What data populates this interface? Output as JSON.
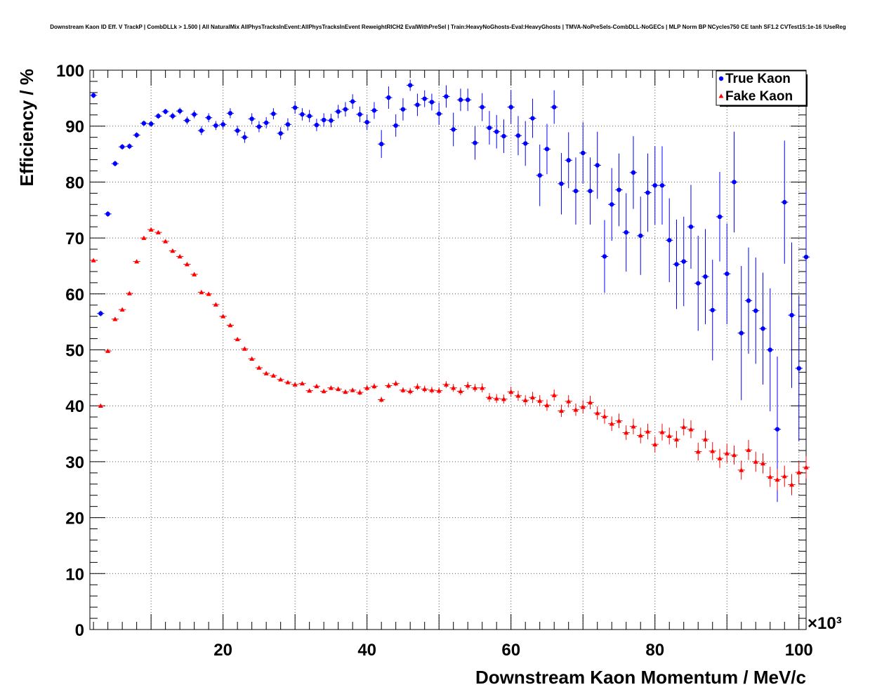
{
  "title": "Downstream Kaon ID Eff. V TrackP | CombDLLk > 1.500 | All NaturalMix AllPhysTracksInEvent:AllPhysTracksInEvent ReweightRICH2 EvalWithPreSel | Train:HeavyNoGhosts-Eval:HeavyGhosts | TMVA-NoPreSels-CombDLL-NoGECs | MLP Norm BP NCycles750 CE tanh SF1.2 CVTest15:1e-16 !UseReg",
  "chart_data": {
    "type": "scatter",
    "title": "Downstream Kaon ID Eff. V TrackP | CombDLLk > 1.500 | All NaturalMix AllPhysTracksInEvent:AllPhysTracksInEvent ReweightRICH2 EvalWithPreSel | Train:HeavyNoGhosts-Eval:HeavyGhosts | TMVA-NoPreSels-CombDLL-NoGECs | MLP Norm BP NCycles750 CE tanh SF1.2 CVTest15:1e-16 !UseReg",
    "xlabel": "Downstream Kaon Momentum / MeV/c",
    "ylabel": "Efficiency / %",
    "x_multiplier": "×10³",
    "xlim": [
      1.5,
      101
    ],
    "ylim": [
      0,
      100
    ],
    "xticks": [
      "20",
      "40",
      "60",
      "80",
      "100"
    ],
    "yticks": [
      "0",
      "10",
      "20",
      "30",
      "40",
      "50",
      "60",
      "70",
      "80",
      "90",
      "100"
    ],
    "grid": true,
    "legend_position": "top-right",
    "series": [
      {
        "name": "True Kaon",
        "marker": "circle",
        "color": "#0000ff",
        "points": [
          [
            2.0,
            95.5,
            0.5
          ],
          [
            3.0,
            56.5,
            0.5
          ],
          [
            4.0,
            74.3,
            0.5
          ],
          [
            5.0,
            83.3,
            0.5
          ],
          [
            6.0,
            86.3,
            0.5
          ],
          [
            7.0,
            86.4,
            0.5
          ],
          [
            8.0,
            88.4,
            0.5
          ],
          [
            9.0,
            90.5,
            0.5
          ],
          [
            10.0,
            90.4,
            0.5
          ],
          [
            11.0,
            91.8,
            0.5
          ],
          [
            12.0,
            92.6,
            0.5
          ],
          [
            13.0,
            91.8,
            0.6
          ],
          [
            14.0,
            92.7,
            0.6
          ],
          [
            15.0,
            91.0,
            0.7
          ],
          [
            16.0,
            92.1,
            0.7
          ],
          [
            17.0,
            89.2,
            0.8
          ],
          [
            18.0,
            91.5,
            0.8
          ],
          [
            19.0,
            90.1,
            0.8
          ],
          [
            20.0,
            90.3,
            0.8
          ],
          [
            21.0,
            92.3,
            0.9
          ],
          [
            22.0,
            89.2,
            0.9
          ],
          [
            23.0,
            88.0,
            1.0
          ],
          [
            24.0,
            91.3,
            1.0
          ],
          [
            25.0,
            89.9,
            1.0
          ],
          [
            26.0,
            90.6,
            1.0
          ],
          [
            27.0,
            92.2,
            1.0
          ],
          [
            28.0,
            88.7,
            1.1
          ],
          [
            29.0,
            90.3,
            1.1
          ],
          [
            30.0,
            93.3,
            1.1
          ],
          [
            31.0,
            92.1,
            1.1
          ],
          [
            32.0,
            91.8,
            1.1
          ],
          [
            33.0,
            90.2,
            1.1
          ],
          [
            34.0,
            91.1,
            1.2
          ],
          [
            35.0,
            91.0,
            1.2
          ],
          [
            36.0,
            92.6,
            1.2
          ],
          [
            37.0,
            93.0,
            1.3
          ],
          [
            38.0,
            94.4,
            1.3
          ],
          [
            39.0,
            92.1,
            1.4
          ],
          [
            40.0,
            90.7,
            1.4
          ],
          [
            41.0,
            92.8,
            1.5
          ],
          [
            42.0,
            86.8,
            2.5
          ],
          [
            43.0,
            95.1,
            2.0
          ],
          [
            44.0,
            90.1,
            2.0
          ],
          [
            45.0,
            93.0,
            2.0
          ],
          [
            46.0,
            97.3,
            1.0
          ],
          [
            47.0,
            93.8,
            2.0
          ],
          [
            48.0,
            94.9,
            1.5
          ],
          [
            49.0,
            94.3,
            1.5
          ],
          [
            50.0,
            92.2,
            2.0
          ],
          [
            51.0,
            95.3,
            2.0
          ],
          [
            52.0,
            89.4,
            3.0
          ],
          [
            53.0,
            94.7,
            2.0
          ],
          [
            54.0,
            94.7,
            2.0
          ],
          [
            55.0,
            87.0,
            3.0
          ],
          [
            56.0,
            93.4,
            2.5
          ],
          [
            57.0,
            89.7,
            3.0
          ],
          [
            58.0,
            89.0,
            3.0
          ],
          [
            59.0,
            88.2,
            3.0
          ],
          [
            60.0,
            93.4,
            3.0
          ],
          [
            61.0,
            88.3,
            3.5
          ],
          [
            62.0,
            86.9,
            4.0
          ],
          [
            63.0,
            91.4,
            3.5
          ],
          [
            64.0,
            81.2,
            5.5
          ],
          [
            65.0,
            85.9,
            4.5
          ],
          [
            66.0,
            93.4,
            3.0
          ],
          [
            67.0,
            79.7,
            5.5
          ],
          [
            68.0,
            83.9,
            5.0
          ],
          [
            69.0,
            78.4,
            6.0
          ],
          [
            70.0,
            85.2,
            5.5
          ],
          [
            71.0,
            78.4,
            6.0
          ],
          [
            72.0,
            83.0,
            6.0
          ],
          [
            73.0,
            66.7,
            6.5
          ],
          [
            74.0,
            76.0,
            6.5
          ],
          [
            75.0,
            78.6,
            6.5
          ],
          [
            76.0,
            71.0,
            7.0
          ],
          [
            77.0,
            81.7,
            6.5
          ],
          [
            78.0,
            70.4,
            7.0
          ],
          [
            79.0,
            78.1,
            7.0
          ],
          [
            80.0,
            79.4,
            7.0
          ],
          [
            81.0,
            79.4,
            7.0
          ],
          [
            82.0,
            69.6,
            7.5
          ],
          [
            83.0,
            65.3,
            8.0
          ],
          [
            84.0,
            65.8,
            8.0
          ],
          [
            85.0,
            72.0,
            7.5
          ],
          [
            86.0,
            61.9,
            8.5
          ],
          [
            87.0,
            63.1,
            8.5
          ],
          [
            88.0,
            57.1,
            9.0
          ],
          [
            89.0,
            73.8,
            8.0
          ],
          [
            90.0,
            63.6,
            9.0
          ],
          [
            91.0,
            80.0,
            9.0
          ],
          [
            92.0,
            53.0,
            12.0
          ],
          [
            93.0,
            58.8,
            9.5
          ],
          [
            94.0,
            57.0,
            9.5
          ],
          [
            95.0,
            53.8,
            10.0
          ],
          [
            96.0,
            50.0,
            11.0
          ],
          [
            97.0,
            35.8,
            13.0
          ],
          [
            98.0,
            76.4,
            11.0
          ],
          [
            99.0,
            56.2,
            13.0
          ],
          [
            100.0,
            46.7,
            13.0
          ],
          [
            101.0,
            66.6,
            12.0
          ]
        ]
      },
      {
        "name": "Fake Kaon",
        "marker": "triangle",
        "color": "#ff0000",
        "points": [
          [
            2.0,
            66.0,
            0.3
          ],
          [
            3.0,
            40.0,
            0.3
          ],
          [
            4.0,
            49.8,
            0.3
          ],
          [
            5.0,
            55.5,
            0.3
          ],
          [
            6.0,
            57.2,
            0.3
          ],
          [
            7.0,
            60.1,
            0.3
          ],
          [
            8.0,
            65.8,
            0.3
          ],
          [
            9.0,
            70.0,
            0.3
          ],
          [
            10.0,
            71.5,
            0.3
          ],
          [
            11.0,
            71.0,
            0.3
          ],
          [
            12.0,
            69.4,
            0.3
          ],
          [
            13.0,
            67.7,
            0.3
          ],
          [
            14.0,
            66.7,
            0.3
          ],
          [
            15.0,
            65.3,
            0.3
          ],
          [
            16.0,
            63.5,
            0.3
          ],
          [
            17.0,
            60.3,
            0.3
          ],
          [
            18.0,
            60.0,
            0.3
          ],
          [
            19.0,
            58.1,
            0.3
          ],
          [
            20.0,
            56.0,
            0.3
          ],
          [
            21.0,
            54.4,
            0.3
          ],
          [
            22.0,
            51.9,
            0.3
          ],
          [
            23.0,
            50.2,
            0.3
          ],
          [
            24.0,
            48.4,
            0.3
          ],
          [
            25.0,
            46.8,
            0.3
          ],
          [
            26.0,
            45.8,
            0.3
          ],
          [
            27.0,
            45.4,
            0.3
          ],
          [
            28.0,
            44.7,
            0.3
          ],
          [
            29.0,
            44.2,
            0.3
          ],
          [
            30.0,
            43.8,
            0.3
          ],
          [
            31.0,
            44.0,
            0.3
          ],
          [
            32.0,
            42.7,
            0.3
          ],
          [
            33.0,
            43.5,
            0.3
          ],
          [
            34.0,
            42.6,
            0.4
          ],
          [
            35.0,
            43.2,
            0.4
          ],
          [
            36.0,
            43.0,
            0.4
          ],
          [
            37.0,
            42.5,
            0.4
          ],
          [
            38.0,
            42.8,
            0.4
          ],
          [
            39.0,
            42.4,
            0.5
          ],
          [
            40.0,
            43.2,
            0.5
          ],
          [
            41.0,
            43.5,
            0.5
          ],
          [
            42.0,
            41.1,
            0.5
          ],
          [
            43.0,
            43.6,
            0.5
          ],
          [
            44.0,
            44.0,
            0.5
          ],
          [
            45.0,
            42.8,
            0.5
          ],
          [
            46.0,
            42.6,
            0.6
          ],
          [
            47.0,
            43.4,
            0.6
          ],
          [
            48.0,
            43.0,
            0.6
          ],
          [
            49.0,
            42.8,
            0.6
          ],
          [
            50.0,
            42.7,
            0.6
          ],
          [
            51.0,
            43.8,
            0.6
          ],
          [
            52.0,
            43.2,
            0.7
          ],
          [
            53.0,
            42.6,
            0.7
          ],
          [
            54.0,
            43.6,
            0.7
          ],
          [
            55.0,
            43.2,
            0.7
          ],
          [
            56.0,
            43.2,
            0.8
          ],
          [
            57.0,
            41.5,
            0.8
          ],
          [
            58.0,
            41.3,
            0.8
          ],
          [
            59.0,
            41.2,
            0.8
          ],
          [
            60.0,
            42.5,
            0.9
          ],
          [
            61.0,
            41.8,
            0.9
          ],
          [
            62.0,
            41.0,
            0.9
          ],
          [
            63.0,
            41.5,
            1.0
          ],
          [
            64.0,
            40.9,
            1.0
          ],
          [
            65.0,
            40.1,
            1.0
          ],
          [
            66.0,
            41.9,
            1.0
          ],
          [
            67.0,
            39.1,
            1.1
          ],
          [
            68.0,
            40.8,
            1.1
          ],
          [
            69.0,
            39.3,
            1.1
          ],
          [
            70.0,
            39.8,
            1.2
          ],
          [
            71.0,
            40.6,
            1.2
          ],
          [
            72.0,
            38.7,
            1.2
          ],
          [
            73.0,
            38.1,
            1.3
          ],
          [
            74.0,
            36.8,
            1.3
          ],
          [
            75.0,
            37.3,
            1.3
          ],
          [
            76.0,
            35.2,
            1.3
          ],
          [
            77.0,
            36.3,
            1.4
          ],
          [
            78.0,
            34.7,
            1.4
          ],
          [
            79.0,
            35.4,
            1.4
          ],
          [
            80.0,
            33.1,
            1.4
          ],
          [
            81.0,
            35.3,
            1.5
          ],
          [
            82.0,
            34.6,
            1.5
          ],
          [
            83.0,
            34.0,
            1.5
          ],
          [
            84.0,
            36.2,
            1.5
          ],
          [
            85.0,
            35.8,
            1.6
          ],
          [
            86.0,
            31.8,
            1.6
          ],
          [
            87.0,
            34.0,
            1.6
          ],
          [
            88.0,
            31.9,
            1.6
          ],
          [
            89.0,
            30.6,
            1.7
          ],
          [
            90.0,
            31.5,
            1.7
          ],
          [
            91.0,
            31.2,
            1.7
          ],
          [
            92.0,
            28.5,
            1.7
          ],
          [
            93.0,
            32.1,
            1.8
          ],
          [
            94.0,
            30.0,
            1.8
          ],
          [
            95.0,
            29.7,
            1.8
          ],
          [
            96.0,
            27.3,
            1.8
          ],
          [
            97.0,
            26.8,
            1.9
          ],
          [
            98.0,
            27.4,
            1.9
          ],
          [
            99.0,
            25.9,
            1.9
          ],
          [
            100.0,
            28.1,
            2.0
          ],
          [
            101.0,
            29.0,
            2.0
          ]
        ]
      }
    ]
  }
}
